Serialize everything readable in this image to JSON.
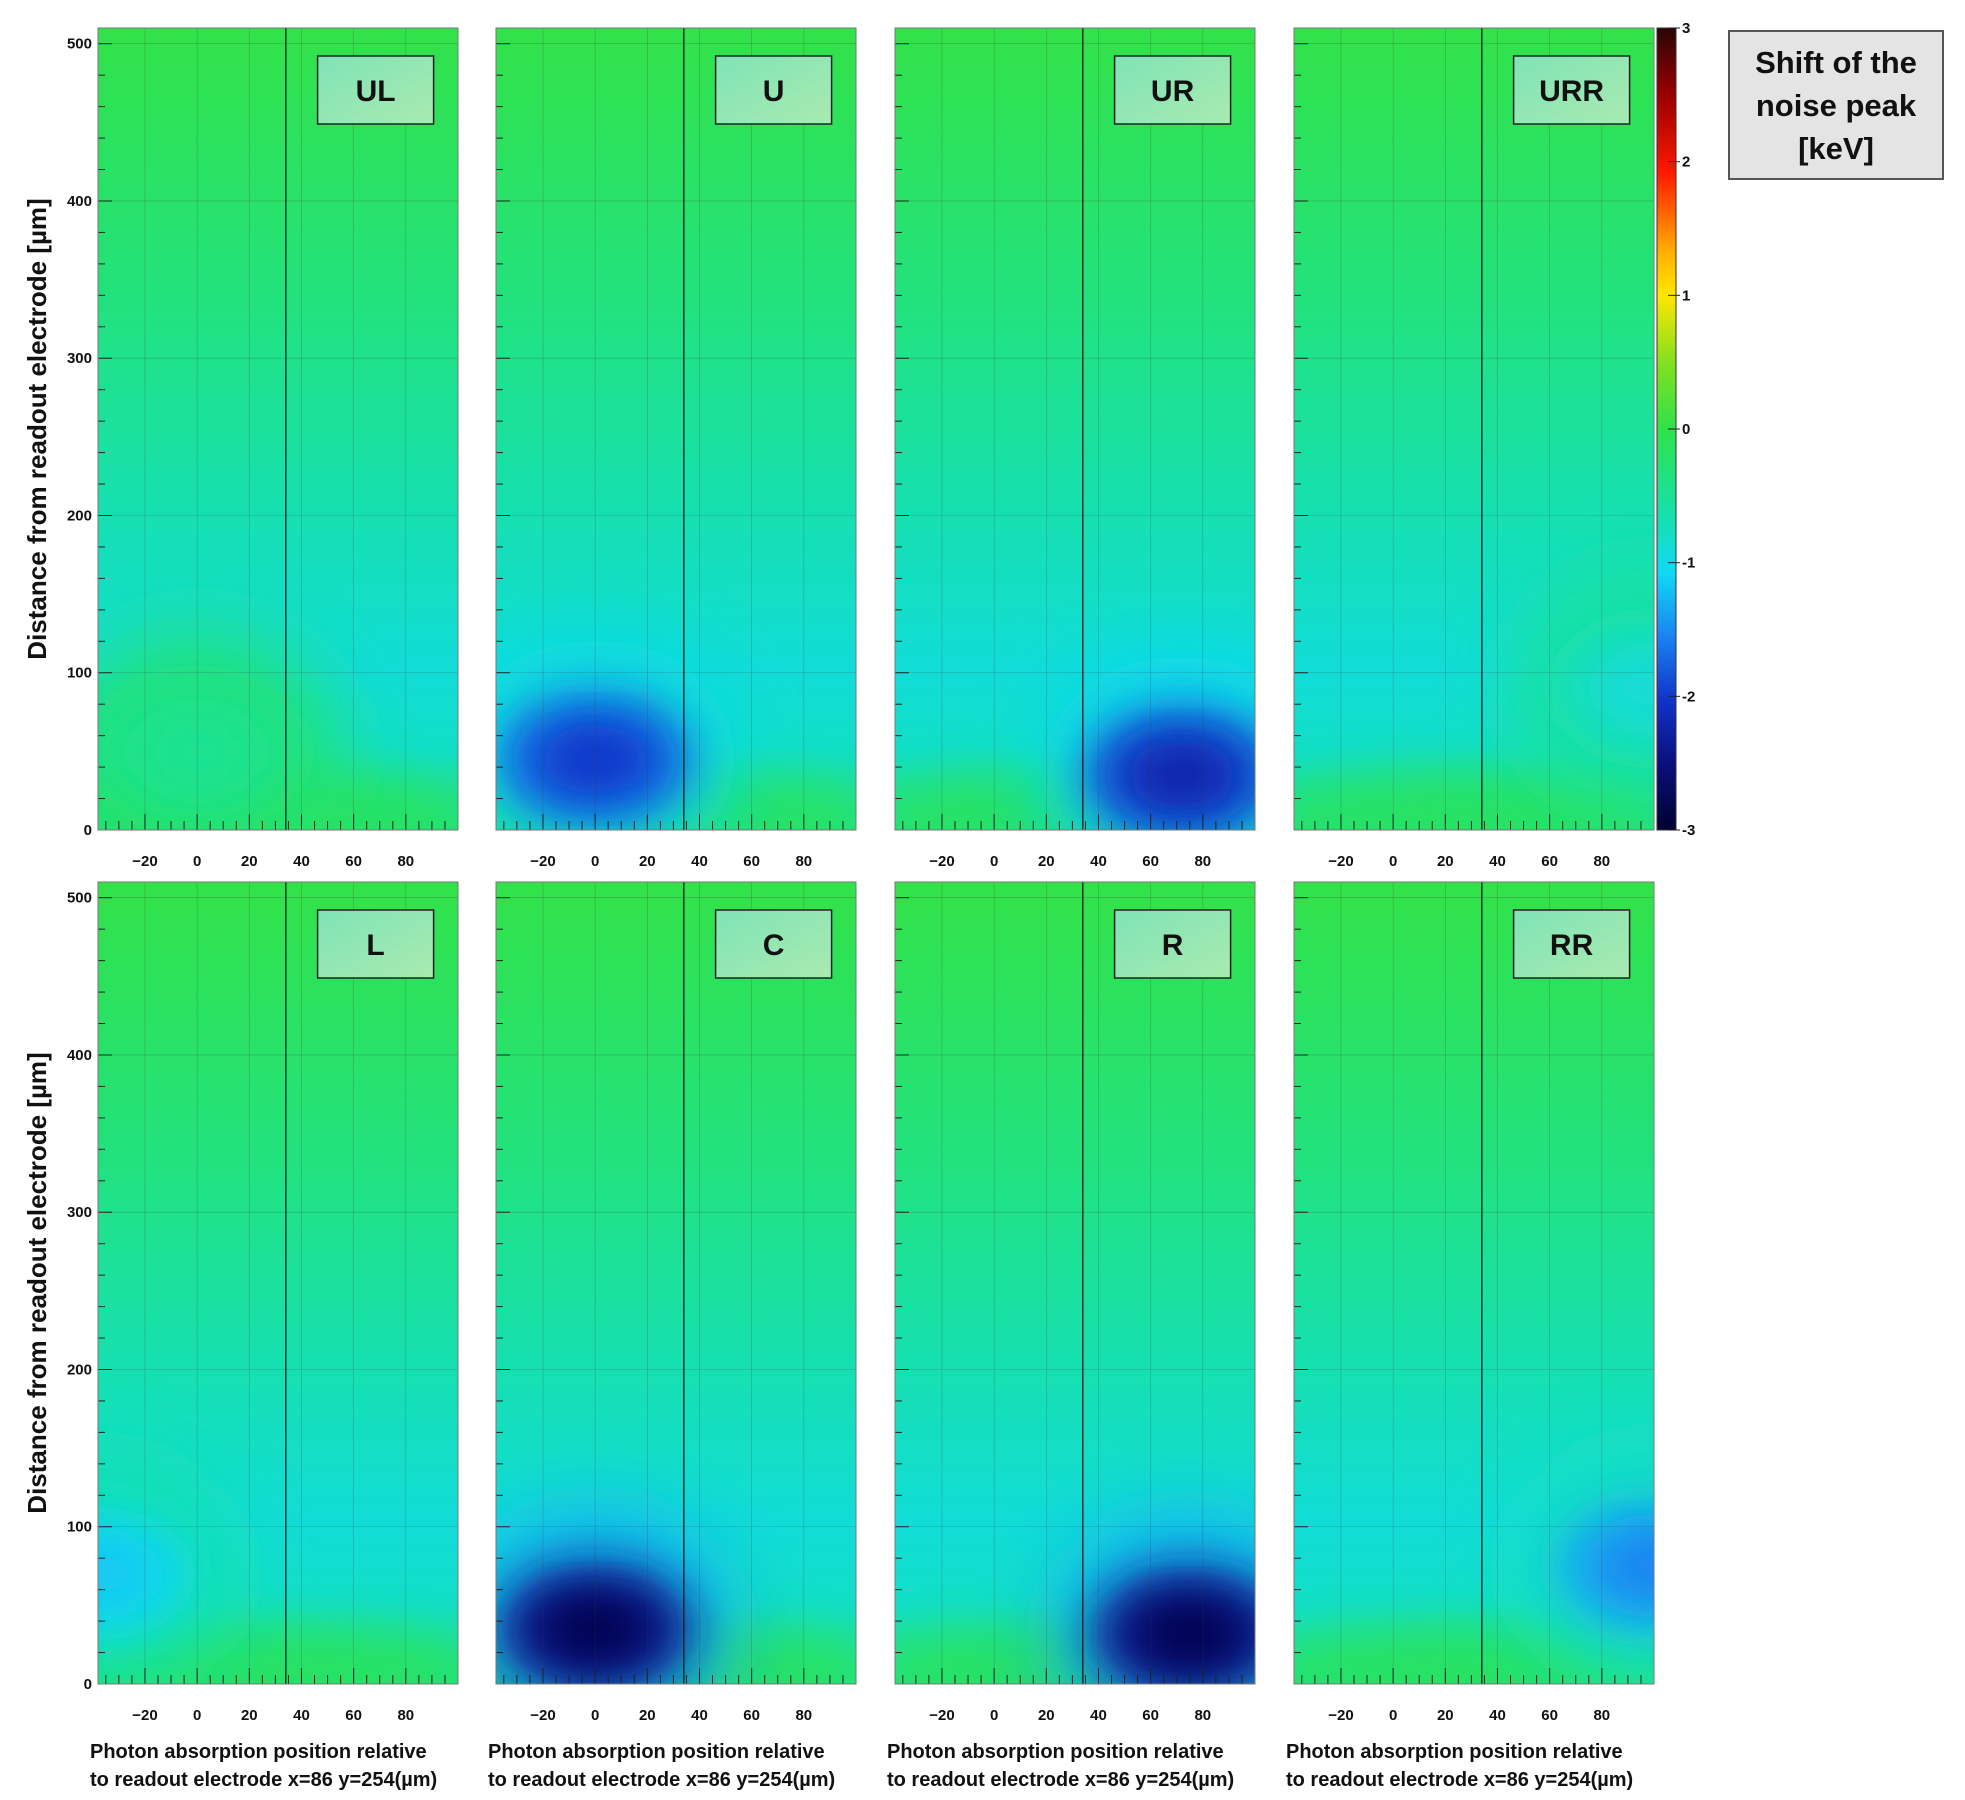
{
  "chart_data": {
    "type": "heatmap",
    "colorbar": {
      "title_lines": [
        "Shift of the",
        "noise peak",
        "[keV]"
      ],
      "range": [
        -3,
        3
      ],
      "ticks": [
        "3",
        "2",
        "1",
        "0",
        "-1",
        "-2",
        "-3"
      ]
    },
    "y_axis": {
      "label": "Distance from readout electrode [µm]",
      "range": [
        0,
        510
      ],
      "ticks": [
        "0",
        "100",
        "200",
        "300",
        "400",
        "500"
      ]
    },
    "x_axis": {
      "label_lines": [
        "Photon absorption position relative",
        "to readout electrode x=86 y=254(µm)"
      ],
      "range": [
        -38,
        100
      ],
      "ticks": [
        "-20",
        "0",
        "20",
        "40",
        "60",
        "80"
      ]
    },
    "panels": [
      {
        "label": "UL",
        "row": 0,
        "col": 0,
        "peaks": [
          {
            "x": 0,
            "y": 50,
            "value": -0.35
          }
        ]
      },
      {
        "label": "U",
        "row": 0,
        "col": 1,
        "peaks": [
          {
            "x": 0,
            "y": 45,
            "value": -2.0
          }
        ]
      },
      {
        "label": "UR",
        "row": 0,
        "col": 2,
        "peaks": [
          {
            "x": 72,
            "y": 35,
            "value": -2.2
          }
        ]
      },
      {
        "label": "URR",
        "row": 0,
        "col": 3,
        "peaks": [
          {
            "x": 100,
            "y": 90,
            "value": -0.8
          }
        ]
      },
      {
        "label": "L",
        "row": 1,
        "col": 0,
        "peaks": [
          {
            "x": -38,
            "y": 70,
            "value": -1.1
          }
        ]
      },
      {
        "label": "C",
        "row": 1,
        "col": 1,
        "peaks": [
          {
            "x": 0,
            "y": 35,
            "value": -2.8
          }
        ]
      },
      {
        "label": "R",
        "row": 1,
        "col": 2,
        "peaks": [
          {
            "x": 75,
            "y": 32,
            "value": -2.8
          }
        ]
      },
      {
        "label": "RR",
        "row": 1,
        "col": 3,
        "peaks": [
          {
            "x": 100,
            "y": 75,
            "value": -1.5
          }
        ]
      }
    ]
  }
}
